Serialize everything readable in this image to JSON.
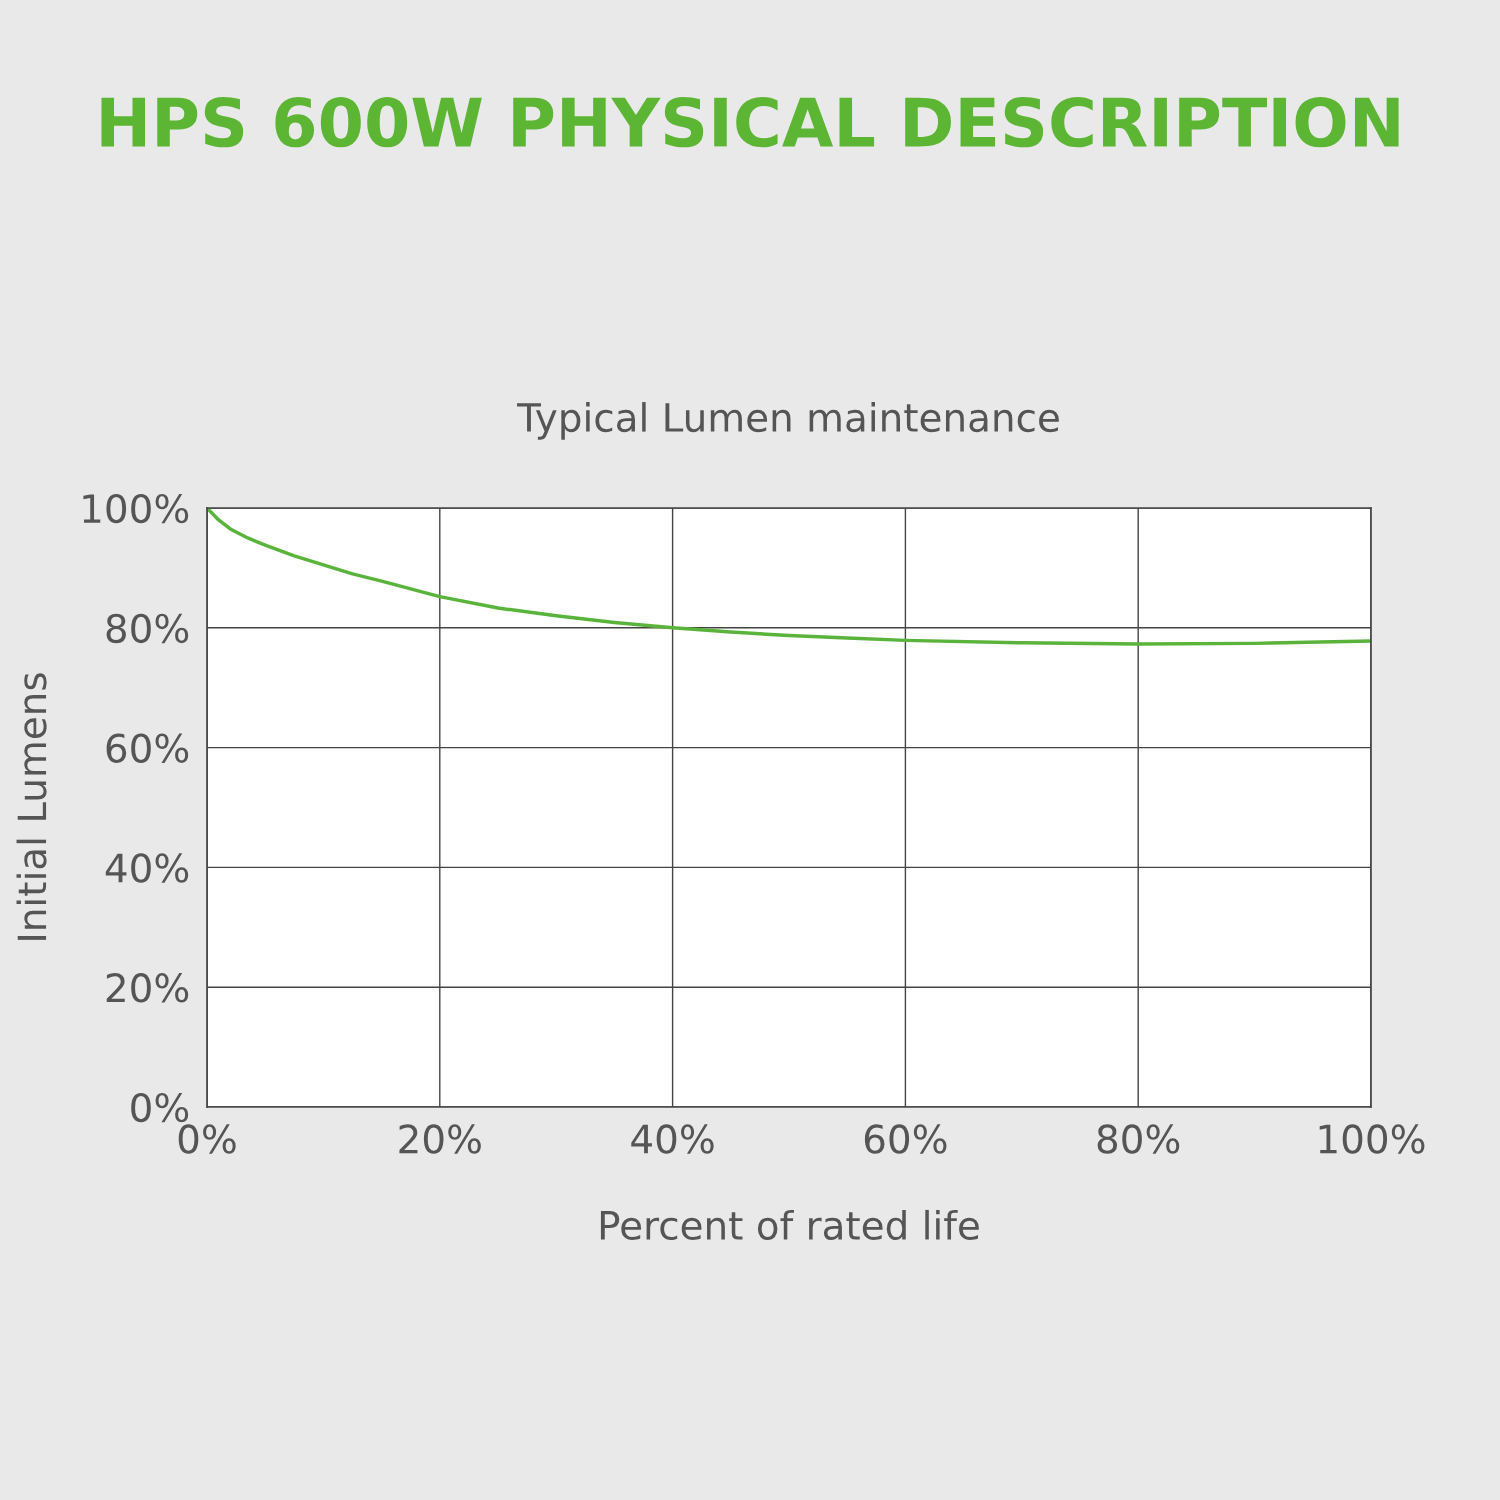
{
  "chart_data": {
    "type": "line",
    "title": "HPS 600W PHYSICAL DESCRIPTION",
    "subtitle": "Typical Lumen maintenance",
    "xlabel": "Percent of rated life",
    "ylabel": "Initial Lumens",
    "x": [
      0,
      1,
      2,
      3.5,
      5,
      7.5,
      10,
      12.5,
      15,
      20,
      25,
      30,
      35,
      40,
      45,
      50,
      55,
      60,
      70,
      80,
      90,
      100
    ],
    "series": [
      {
        "color": "#5ab43c",
        "values": [
          100,
          98,
          96.5,
          95,
          93.8,
          92,
          90.5,
          89,
          87.8,
          85.2,
          83.3,
          82,
          80.9,
          80,
          79.3,
          78.7,
          78.3,
          77.9,
          77.5,
          77.3,
          77.4,
          77.8
        ]
      }
    ],
    "xlim": [
      0,
      100
    ],
    "ylim": [
      0,
      100
    ],
    "xticks": [
      {
        "value": 0,
        "label": "0%"
      },
      {
        "value": 20,
        "label": "20%"
      },
      {
        "value": 40,
        "label": "40%"
      },
      {
        "value": 60,
        "label": "60%"
      },
      {
        "value": 80,
        "label": "80%"
      },
      {
        "value": 100,
        "label": "100%"
      }
    ],
    "yticks": [
      {
        "value": 0,
        "label": "0%"
      },
      {
        "value": 20,
        "label": "20%"
      },
      {
        "value": 40,
        "label": "40%"
      },
      {
        "value": 60,
        "label": "60%"
      },
      {
        "value": 80,
        "label": "80%"
      },
      {
        "value": 100,
        "label": "100%"
      }
    ],
    "grid": true,
    "marker": "none",
    "line_style": "solid",
    "legend": false
  }
}
